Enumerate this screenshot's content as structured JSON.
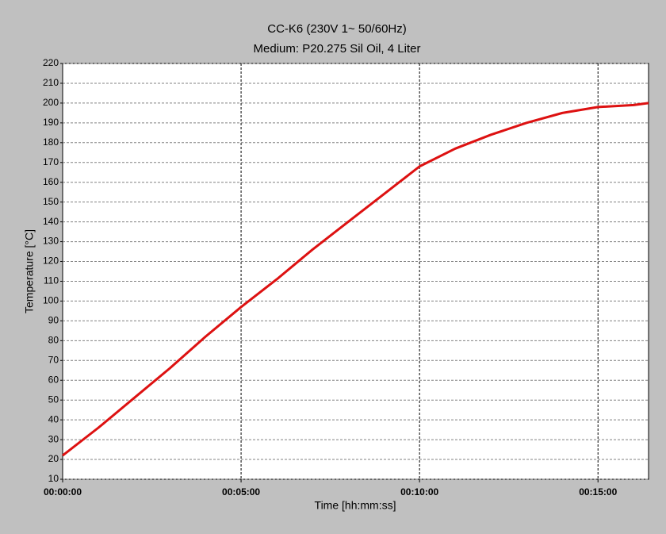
{
  "chart_data": {
    "type": "line",
    "title": "CC-K6 (230V 1~ 50/60Hz)",
    "subtitle": "Medium: P20.275 Sil Oil, 4 Liter",
    "x_label": "Time [hh:mm:ss]",
    "y_label": "Temperature [°C]",
    "x": [
      0,
      60,
      120,
      180,
      240,
      300,
      360,
      420,
      480,
      540,
      600,
      660,
      720,
      780,
      840,
      900,
      960,
      985
    ],
    "series": [
      {
        "name": "Temperature",
        "color": "#dd1111",
        "values": [
          22,
          36,
          51,
          66,
          82,
          97,
          111,
          126,
          140,
          154,
          168,
          177,
          184,
          190,
          195,
          198,
          199,
          200
        ]
      }
    ],
    "xlim": [
      0,
      985
    ],
    "xticks": [
      {
        "value": 0,
        "label": "00:00:00"
      },
      {
        "value": 300,
        "label": "00:05:00"
      },
      {
        "value": 600,
        "label": "00:10:00"
      },
      {
        "value": 900,
        "label": "00:15:00"
      }
    ],
    "ylim": [
      10,
      220
    ],
    "yticks": [
      10,
      20,
      30,
      40,
      50,
      60,
      70,
      80,
      90,
      100,
      110,
      120,
      130,
      140,
      150,
      160,
      170,
      180,
      190,
      200,
      210,
      220
    ],
    "grid": true
  }
}
